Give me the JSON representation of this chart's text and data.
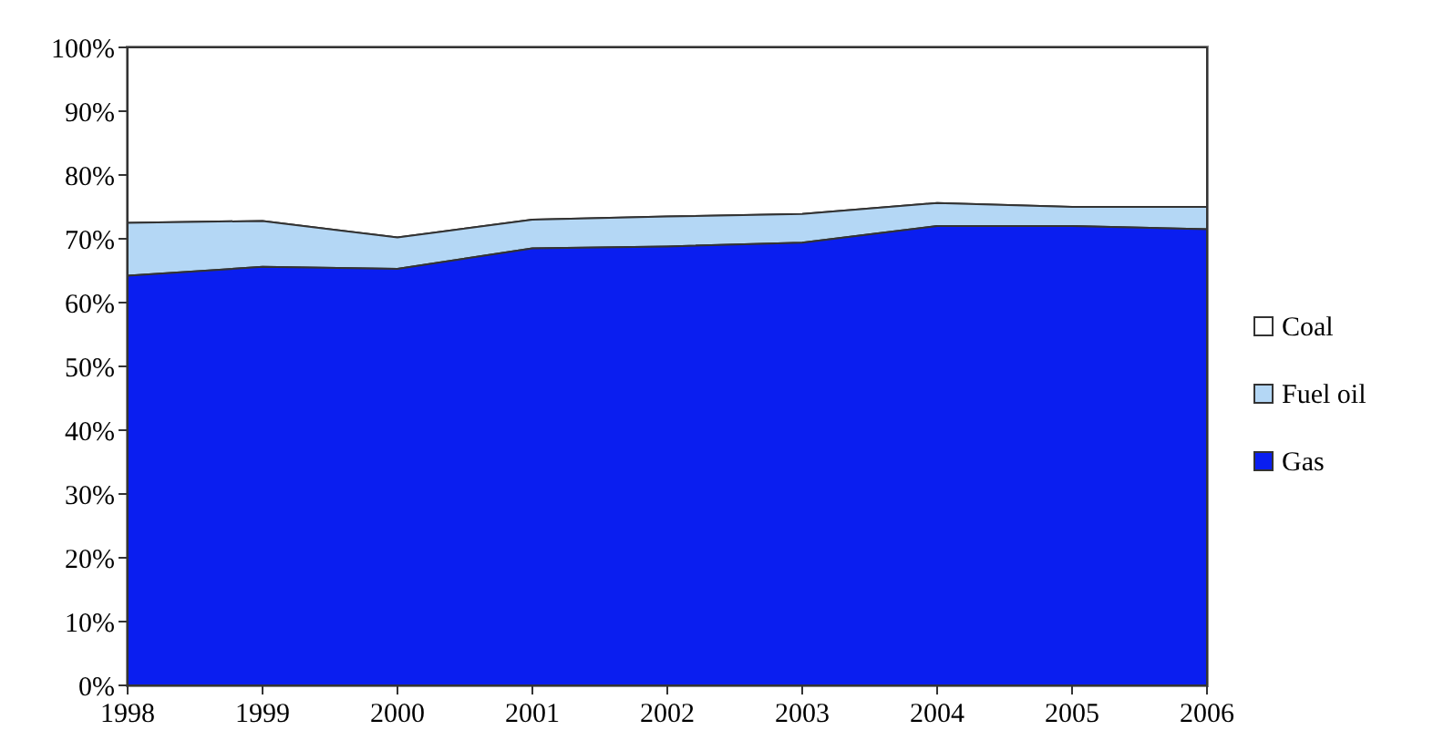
{
  "chart_data": {
    "type": "area",
    "stacked": true,
    "categories": [
      "1998",
      "1999",
      "2000",
      "2001",
      "2002",
      "2003",
      "2004",
      "2005",
      "2006"
    ],
    "series": [
      {
        "name": "Gas",
        "color": "#0a1ef0",
        "values": [
          64.2,
          65.6,
          65.3,
          68.5,
          68.8,
          69.4,
          72,
          72,
          71.5
        ]
      },
      {
        "name": "Fuel oil",
        "color": "#b4d7f5",
        "values": [
          8.3,
          7.2,
          4.9,
          4.5,
          4.7,
          4.5,
          3.6,
          3,
          3.5
        ]
      },
      {
        "name": "Coal",
        "color": "#ffffff",
        "values": [
          27.5,
          27.2,
          29.8,
          27,
          26.5,
          26.1,
          24.4,
          25,
          25
        ]
      }
    ],
    "ylim": [
      0,
      100
    ],
    "yticks": [
      {
        "value": 0,
        "label": "0%"
      },
      {
        "value": 10,
        "label": "10%"
      },
      {
        "value": 20,
        "label": "20%"
      },
      {
        "value": 30,
        "label": "30%"
      },
      {
        "value": 40,
        "label": "40%"
      },
      {
        "value": 50,
        "label": "50%"
      },
      {
        "value": 60,
        "label": "60%"
      },
      {
        "value": 70,
        "label": "70%"
      },
      {
        "value": 80,
        "label": "80%"
      },
      {
        "value": 90,
        "label": "90%"
      },
      {
        "value": 100,
        "label": "100%"
      }
    ],
    "legend": "right"
  }
}
